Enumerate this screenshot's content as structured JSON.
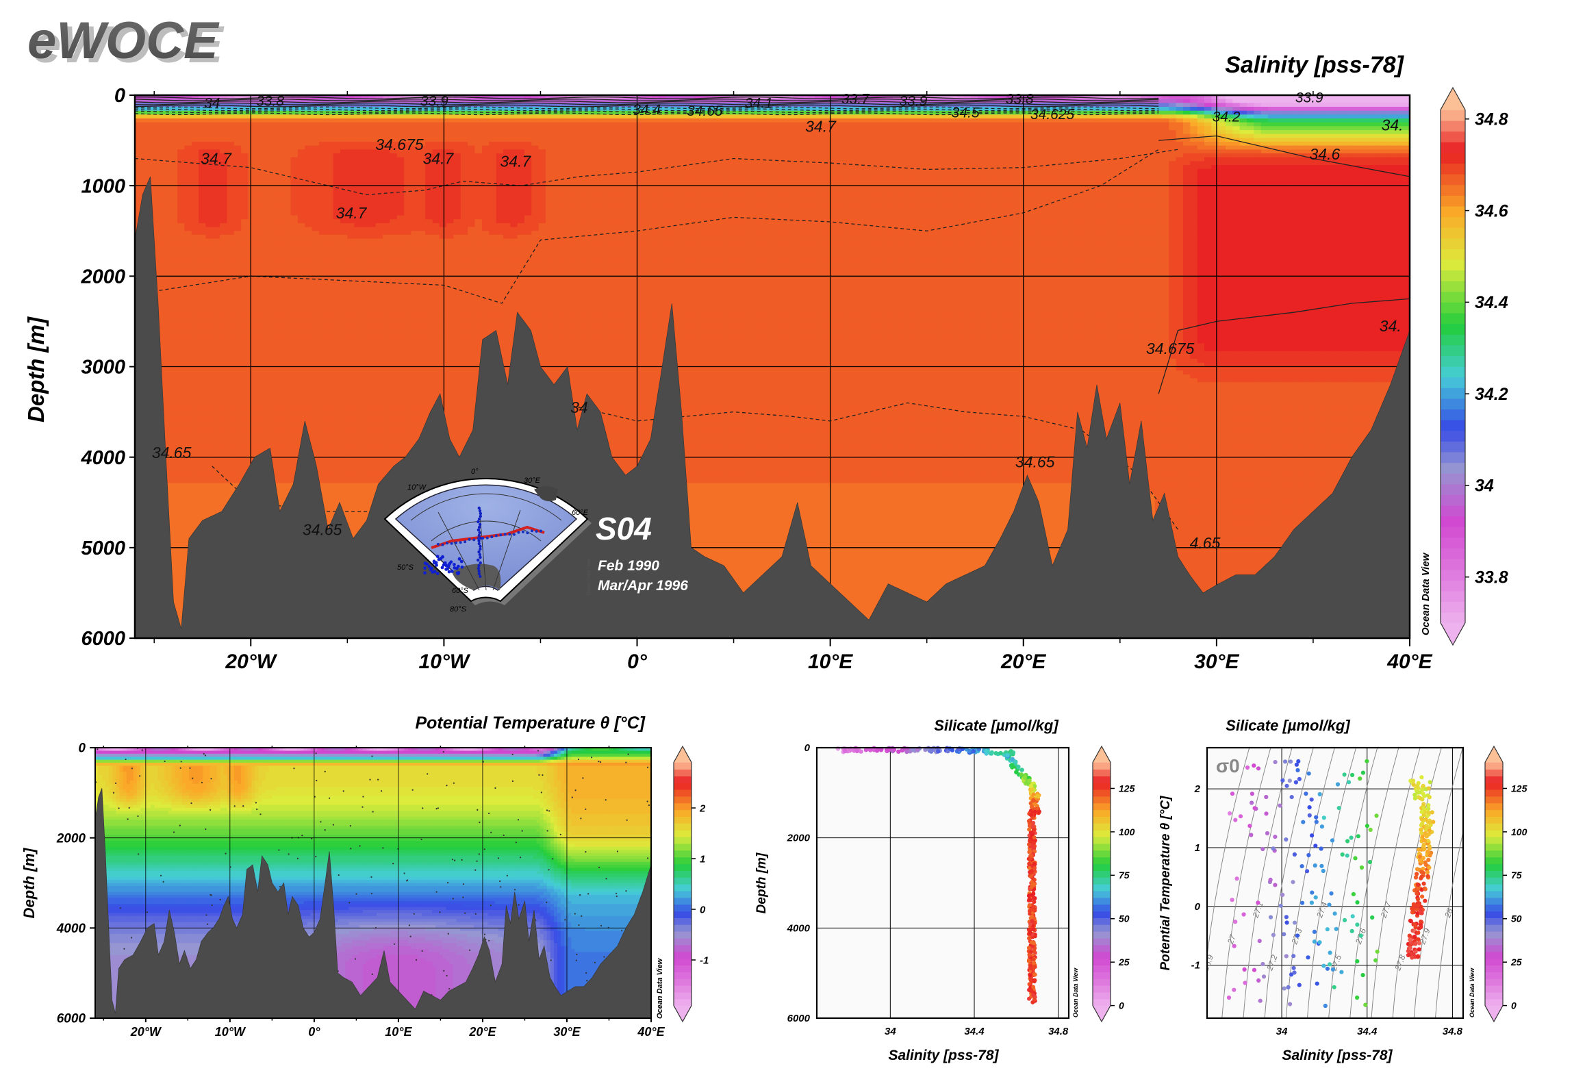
{
  "brand": "eWOCE",
  "odv_credit": "Ocean Data View",
  "inset": {
    "section_name": "S04",
    "cruise_dates": [
      "Feb 1990",
      "Mar/Apr 1996"
    ],
    "map_labels": [
      "10°W",
      "0°",
      "30°E",
      "60°E",
      "50°S",
      "60°S",
      "80°S"
    ],
    "map_credit": "Ocean Data View"
  },
  "chart_data": [
    {
      "id": "salinity-section",
      "type": "heatmap",
      "title": "Salinity [pss-78]",
      "xlabel": "",
      "ylabel": "Depth [m]",
      "xlim": [
        -26,
        40
      ],
      "ylim": [
        6000,
        0
      ],
      "x_ticks": [
        -20,
        -10,
        0,
        10,
        20,
        30,
        40
      ],
      "x_tick_labels": [
        "20°W",
        "10°W",
        "0°",
        "10°E",
        "20°E",
        "30°E",
        "40°E"
      ],
      "y_ticks": [
        0,
        1000,
        2000,
        3000,
        4000,
        5000,
        6000
      ],
      "y_tick_labels": [
        "0",
        "1000",
        "2000",
        "3000",
        "4000",
        "5000",
        "6000"
      ],
      "colorbar": {
        "min": 33.7,
        "max": 34.82,
        "ticks": [
          33.8,
          34,
          34.2,
          34.4,
          34.6,
          34.8
        ],
        "tick_labels": [
          "33.8",
          "34",
          "34.2",
          "34.4",
          "34.6",
          "34.8"
        ]
      },
      "contour_labels": [
        {
          "text": "34",
          "x": -22,
          "y": 80
        },
        {
          "text": "33.8",
          "x": -19,
          "y": 55
        },
        {
          "text": "33.9",
          "x": -10.5,
          "y": 55
        },
        {
          "text": "34.4",
          "x": 0.5,
          "y": 150
        },
        {
          "text": "34.65",
          "x": 3.5,
          "y": 165
        },
        {
          "text": "34.1",
          "x": 6.3,
          "y": 80
        },
        {
          "text": "33.7",
          "x": 11.3,
          "y": 35
        },
        {
          "text": "33.9",
          "x": 14.3,
          "y": 55
        },
        {
          "text": "33.8",
          "x": 19.8,
          "y": 35
        },
        {
          "text": "34.5",
          "x": 17,
          "y": 185
        },
        {
          "text": "34.625",
          "x": 21.5,
          "y": 205
        },
        {
          "text": "34.7",
          "x": 9.5,
          "y": 345
        },
        {
          "text": "34.675",
          "x": -12.3,
          "y": 545
        },
        {
          "text": "34.7",
          "x": -21.8,
          "y": 700
        },
        {
          "text": "34.7",
          "x": -10.3,
          "y": 700
        },
        {
          "text": "34.7",
          "x": -6.3,
          "y": 730
        },
        {
          "text": "34.7",
          "x": -14.8,
          "y": 1300
        },
        {
          "text": "33.9",
          "x": 34.8,
          "y": 20
        },
        {
          "text": "34.2",
          "x": 30.5,
          "y": 230
        },
        {
          "text": "34.",
          "x": 39.1,
          "y": 330
        },
        {
          "text": "34.6",
          "x": 35.6,
          "y": 650
        },
        {
          "text": "34.675",
          "x": 27.6,
          "y": 2800
        },
        {
          "text": "34.",
          "x": 39,
          "y": 2550
        },
        {
          "text": "34.65",
          "x": -24.1,
          "y": 3950
        },
        {
          "text": "34.65",
          "x": -16.3,
          "y": 4800
        },
        {
          "text": "34.65",
          "x": 20.6,
          "y": 4050
        },
        {
          "text": "4.65",
          "x": 29.4,
          "y": 4950
        },
        {
          "text": "34",
          "x": -3,
          "y": 3450
        }
      ]
    },
    {
      "id": "theta-section",
      "type": "heatmap",
      "title": "Potential Temperature θ [°C]",
      "xlabel": "",
      "ylabel": "Depth [m]",
      "xlim": [
        -26,
        40
      ],
      "ylim": [
        6000,
        0
      ],
      "x_ticks": [
        -20,
        -10,
        0,
        10,
        20,
        30,
        40
      ],
      "x_tick_labels": [
        "20°W",
        "10°W",
        "0°",
        "10°E",
        "20°E",
        "30°E",
        "40°E"
      ],
      "y_ticks": [
        0,
        2000,
        4000,
        6000
      ],
      "y_tick_labels": [
        "0",
        "2000",
        "4000",
        "6000"
      ],
      "colorbar": {
        "min": -1.9,
        "max": 2.9,
        "ticks": [
          -1,
          0,
          1,
          2
        ],
        "tick_labels": [
          "-1",
          "0",
          "1",
          "2"
        ]
      }
    },
    {
      "id": "silicate-depth-scatter",
      "type": "scatter",
      "title": "Silicate [µmol/kg]",
      "xlabel": "Salinity [pss-78]",
      "ylabel": "Depth [m]",
      "xlim": [
        33.65,
        34.85
      ],
      "ylim": [
        6000,
        0
      ],
      "x_ticks": [
        34,
        34.4,
        34.8
      ],
      "x_tick_labels": [
        "34",
        "34.4",
        "34.8"
      ],
      "y_ticks": [
        0,
        2000,
        4000,
        6000
      ],
      "y_tick_labels": [
        "0",
        "2000",
        "4000",
        "6000"
      ],
      "colorbar": {
        "min": 0,
        "max": 140,
        "ticks": [
          0,
          25,
          50,
          75,
          100,
          125
        ],
        "tick_labels": [
          "0",
          "25",
          "50",
          "75",
          "100",
          "125"
        ]
      }
    },
    {
      "id": "silicate-ts-scatter",
      "type": "scatter",
      "title": "Silicate [µmol/kg]",
      "xlabel": "Salinity [pss-78]",
      "ylabel": "Potential Temperature θ [°C]",
      "xlim": [
        33.65,
        34.85
      ],
      "ylim": [
        -1.9,
        2.7
      ],
      "x_ticks": [
        34,
        34.4,
        34.8
      ],
      "x_tick_labels": [
        "34",
        "34.4",
        "34.8"
      ],
      "y_ticks": [
        -1,
        0,
        1,
        2
      ],
      "y_tick_labels": [
        "-1",
        "0",
        "1",
        "2"
      ],
      "sigma_label": "σ0",
      "isopycnal_labels": [
        "26.9",
        "27",
        "27.1",
        "27.2",
        "27.3",
        "27.4",
        "27.5",
        "27.6",
        "27.7",
        "27.8",
        "27.9",
        "28"
      ],
      "colorbar": {
        "min": 0,
        "max": 140,
        "ticks": [
          0,
          25,
          50,
          75,
          100,
          125
        ],
        "tick_labels": [
          "0",
          "25",
          "50",
          "75",
          "100",
          "125"
        ]
      }
    }
  ]
}
